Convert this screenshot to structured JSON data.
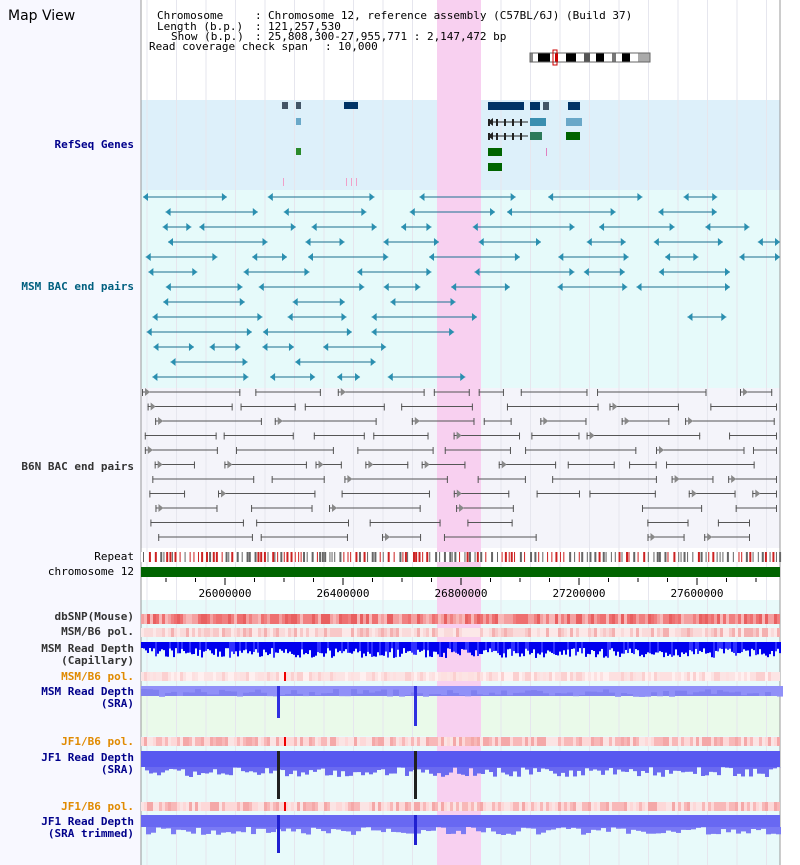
{
  "page": {
    "title": "Map View"
  },
  "info": {
    "chromosome_key": "Chromosome",
    "chromosome_val": "Chromosome 12, reference assembly (C57BL/6J) (Build 37)",
    "length_key": "Length (b.p.)",
    "length_val": "121,257,530",
    "show_key": "Show (b.p.)",
    "show_val": "25,808,300-27,955,771 : 2,147,472 bp",
    "span_key": "Read coverage check span",
    "span_val": "10,000"
  },
  "tracks": {
    "refseq": "RefSeq Genes",
    "msm_bac": "MSM BAC end pairs",
    "b6n_bac": "B6N BAC end pairs",
    "repeat": "Repeat",
    "chromosome": "chromosome 12",
    "dbsnp": "dbSNP(Mouse)",
    "msm_b6_pol_1": "MSM/B6 pol.",
    "msm_depth_cap": "MSM Read Depth\n(Capillary)",
    "msm_b6_pol_2": "MSM/B6 pol.",
    "msm_depth_sra": "MSM Read Depth\n(SRA)",
    "jf1_b6_pol_1": "JF1/B6 pol.",
    "jf1_depth_sra": "JF1 Read Depth\n(SRA)",
    "jf1_b6_pol_2": "JF1/B6 pol.",
    "jf1_depth_trim": "JF1 Read Depth\n(SRA trimmed)"
  },
  "axis": {
    "ticks": [
      "26000000",
      "26400000",
      "26800000",
      "27200000",
      "27600000"
    ]
  },
  "colors": {
    "refseq_label": "#00008b",
    "msm_label": "#005f7f",
    "b6n_label": "#333333",
    "pol_label": "#e08a00",
    "depth_label": "#00008b",
    "chromosome_bar": "#006400",
    "highlight": "#f8d0f0"
  }
}
